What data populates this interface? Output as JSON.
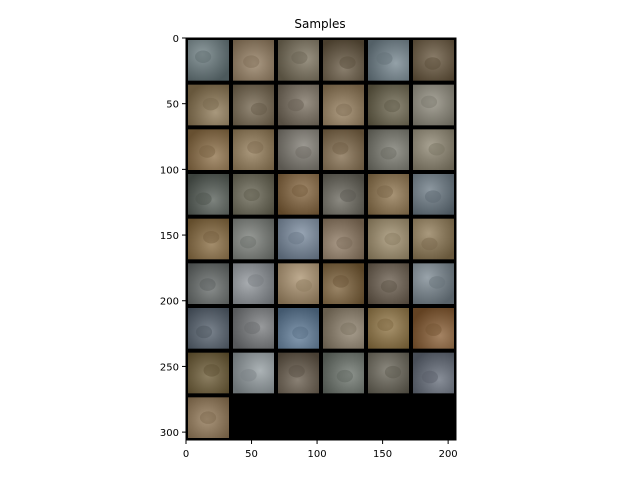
{
  "figure": {
    "title": "Samples"
  },
  "chart_data": {
    "type": "image_grid",
    "title": "Samples",
    "grid": false,
    "xlim": [
      0,
      206
    ],
    "ylim": [
      306,
      0
    ],
    "x_ticks": [
      0,
      50,
      100,
      150,
      200
    ],
    "y_ticks": [
      0,
      50,
      100,
      150,
      200,
      250,
      300
    ],
    "x_tick_labels": [
      "0",
      "50",
      "100",
      "150",
      "200"
    ],
    "y_tick_labels": [
      "0",
      "50",
      "100",
      "150",
      "200",
      "250",
      "300"
    ],
    "grid_columns": 6,
    "grid_rows": 9,
    "sample_count": 49,
    "empty_region_color": "#000000",
    "border_color": "#000000",
    "sample_colors": [
      [
        "#6f7c7f",
        "#8e7d67",
        "#7b7464",
        "#6c6150",
        "#76838a",
        "#6c5f4c"
      ],
      [
        "#8a7a5f",
        "#756a58",
        "#7a7266",
        "#8f7d63",
        "#6f6a58",
        "#8a877c"
      ],
      [
        "#8a7354",
        "#8d7b5f",
        "#7e7b74",
        "#806f57",
        "#7a7a72",
        "#8a8474"
      ],
      [
        "#5f6560",
        "#6c6a5c",
        "#826a4c",
        "#6d6b63",
        "#8a7658",
        "#6f7a82"
      ],
      [
        "#86704f",
        "#7b7e7a",
        "#7a8796",
        "#8a7a68",
        "#978a70",
        "#8b7b5f"
      ],
      [
        "#6b6f6e",
        "#8a8e92",
        "#a08d72",
        "#7c6749",
        "#6d6357",
        "#7b858c"
      ],
      [
        "#5d6670",
        "#7a7c7e",
        "#667c92",
        "#8a8070",
        "#8b7650",
        "#866545"
      ],
      [
        "#6f6245",
        "#8e9598",
        "#6b6256",
        "#707670",
        "#6d6a60",
        "#6a707a"
      ],
      [
        "#8c785e"
      ]
    ]
  }
}
